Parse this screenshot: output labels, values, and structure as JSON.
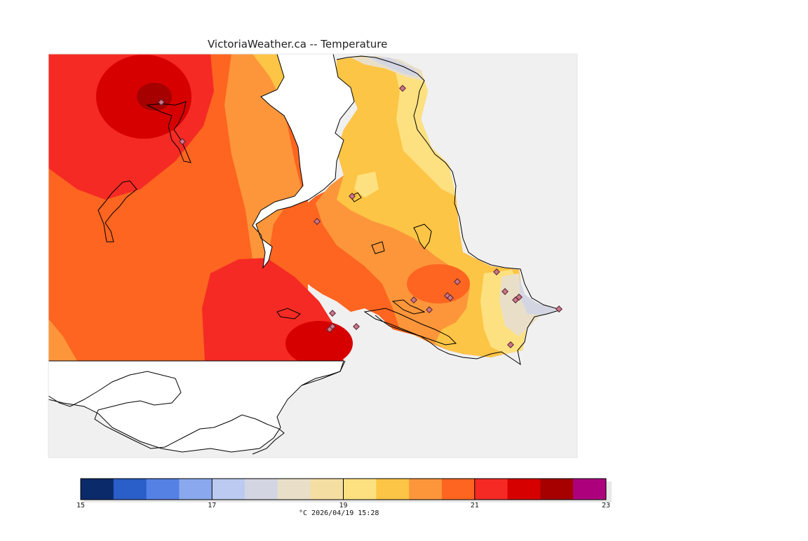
{
  "map": {
    "title": "VictoriaWeather.ca -- Temperature",
    "colors": {
      "land": "#f0f0f0",
      "water": "#ffffff",
      "coast": "#000000",
      "station_fill": "#cc7788",
      "station_stroke": "#552233"
    },
    "legend": {
      "min": 15,
      "max": 23,
      "step": 0.5,
      "tick_values": [
        15,
        17,
        19,
        21,
        23
      ],
      "colors": [
        "#0a2a6a",
        "#2a5ec8",
        "#5580e4",
        "#8aa8ee",
        "#bccaf1",
        "#d3d6e2",
        "#e9dfc8",
        "#f5dea2",
        "#fde180",
        "#fdc545",
        "#fd963a",
        "#fd6520",
        "#f52a24",
        "#d70000",
        "#a60000",
        "#ad007d"
      ],
      "caption": "°C  2026/04/19 15:28"
    }
  }
}
